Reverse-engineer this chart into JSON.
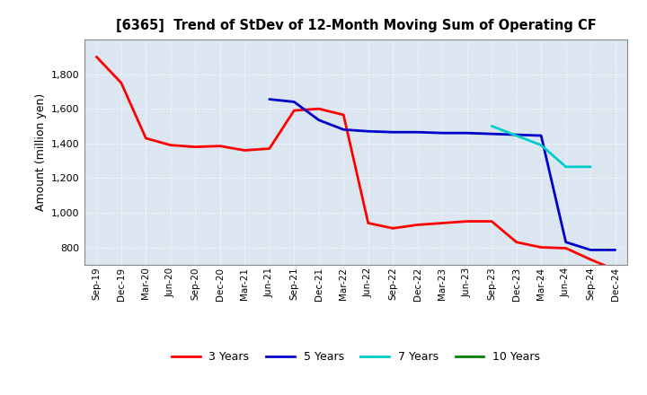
{
  "title": "[6365]  Trend of StDev of 12-Month Moving Sum of Operating CF",
  "ylabel": "Amount (million yen)",
  "bg_color": "#ffffff",
  "plot_bg_color": "#dce6f1",
  "grid_color": "#ffffff",
  "x_labels": [
    "Sep-19",
    "Dec-19",
    "Mar-20",
    "Jun-20",
    "Sep-20",
    "Dec-20",
    "Mar-21",
    "Jun-21",
    "Sep-21",
    "Dec-21",
    "Mar-22",
    "Jun-22",
    "Sep-22",
    "Dec-22",
    "Mar-23",
    "Jun-23",
    "Sep-23",
    "Dec-23",
    "Mar-24",
    "Jun-24",
    "Sep-24",
    "Dec-24"
  ],
  "series": {
    "3 Years": {
      "color": "#ff0000",
      "data_x": [
        0,
        1,
        2,
        3,
        4,
        5,
        6,
        7,
        8,
        9,
        10,
        11,
        12,
        13,
        14,
        15,
        16,
        17,
        18,
        19,
        20,
        21
      ],
      "data_y": [
        1900,
        1750,
        1430,
        1390,
        1380,
        1385,
        1360,
        1370,
        1590,
        1600,
        1565,
        940,
        910,
        930,
        940,
        950,
        950,
        830,
        800,
        795,
        730,
        670
      ]
    },
    "5 Years": {
      "color": "#0000cc",
      "data_x": [
        7,
        8,
        9,
        10,
        11,
        12,
        13,
        14,
        15,
        16,
        17,
        18,
        19,
        20,
        21
      ],
      "data_y": [
        1655,
        1640,
        1535,
        1480,
        1470,
        1465,
        1465,
        1460,
        1460,
        1455,
        1450,
        1445,
        830,
        785,
        785
      ]
    },
    "7 Years": {
      "color": "#00cccc",
      "data_x": [
        16,
        17,
        18,
        19,
        20
      ],
      "data_y": [
        1500,
        1445,
        1390,
        1265,
        1265
      ]
    },
    "10 Years": {
      "color": "#008000",
      "data_x": [],
      "data_y": []
    }
  },
  "ylim": [
    700,
    2000
  ],
  "yticks": [
    800,
    1000,
    1200,
    1400,
    1600,
    1800
  ],
  "legend_entries": [
    "3 Years",
    "5 Years",
    "7 Years",
    "10 Years"
  ],
  "legend_colors": [
    "#ff0000",
    "#0000cc",
    "#00cccc",
    "#008000"
  ]
}
